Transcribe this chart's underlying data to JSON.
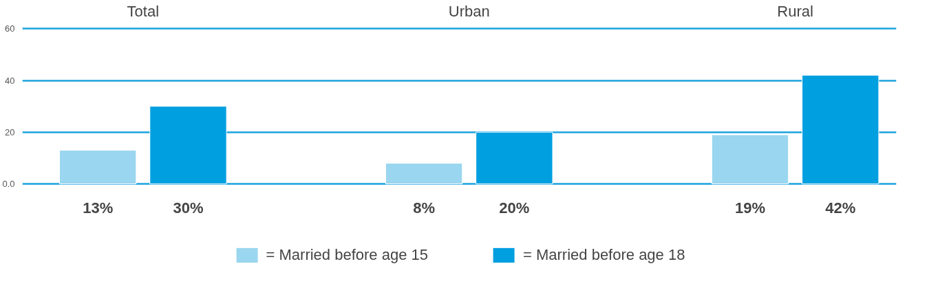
{
  "chart_data": {
    "type": "bar",
    "categories": [
      "Total",
      "Urban",
      "Rural"
    ],
    "series": [
      {
        "name": "= Married before age 15",
        "color": "#9ad6ef",
        "values": [
          13,
          8,
          19
        ],
        "value_labels": [
          "13%",
          "8%",
          "19%"
        ]
      },
      {
        "name": "= Married before age 18",
        "color": "#009fe0",
        "values": [
          30,
          20,
          42
        ],
        "value_labels": [
          "30%",
          "20%",
          "42%"
        ]
      }
    ],
    "ylim": [
      0,
      60
    ],
    "yticks": [
      {
        "value": 0,
        "label": "0.0"
      },
      20,
      40,
      60
    ],
    "grid": "y",
    "legend": "bottom"
  }
}
